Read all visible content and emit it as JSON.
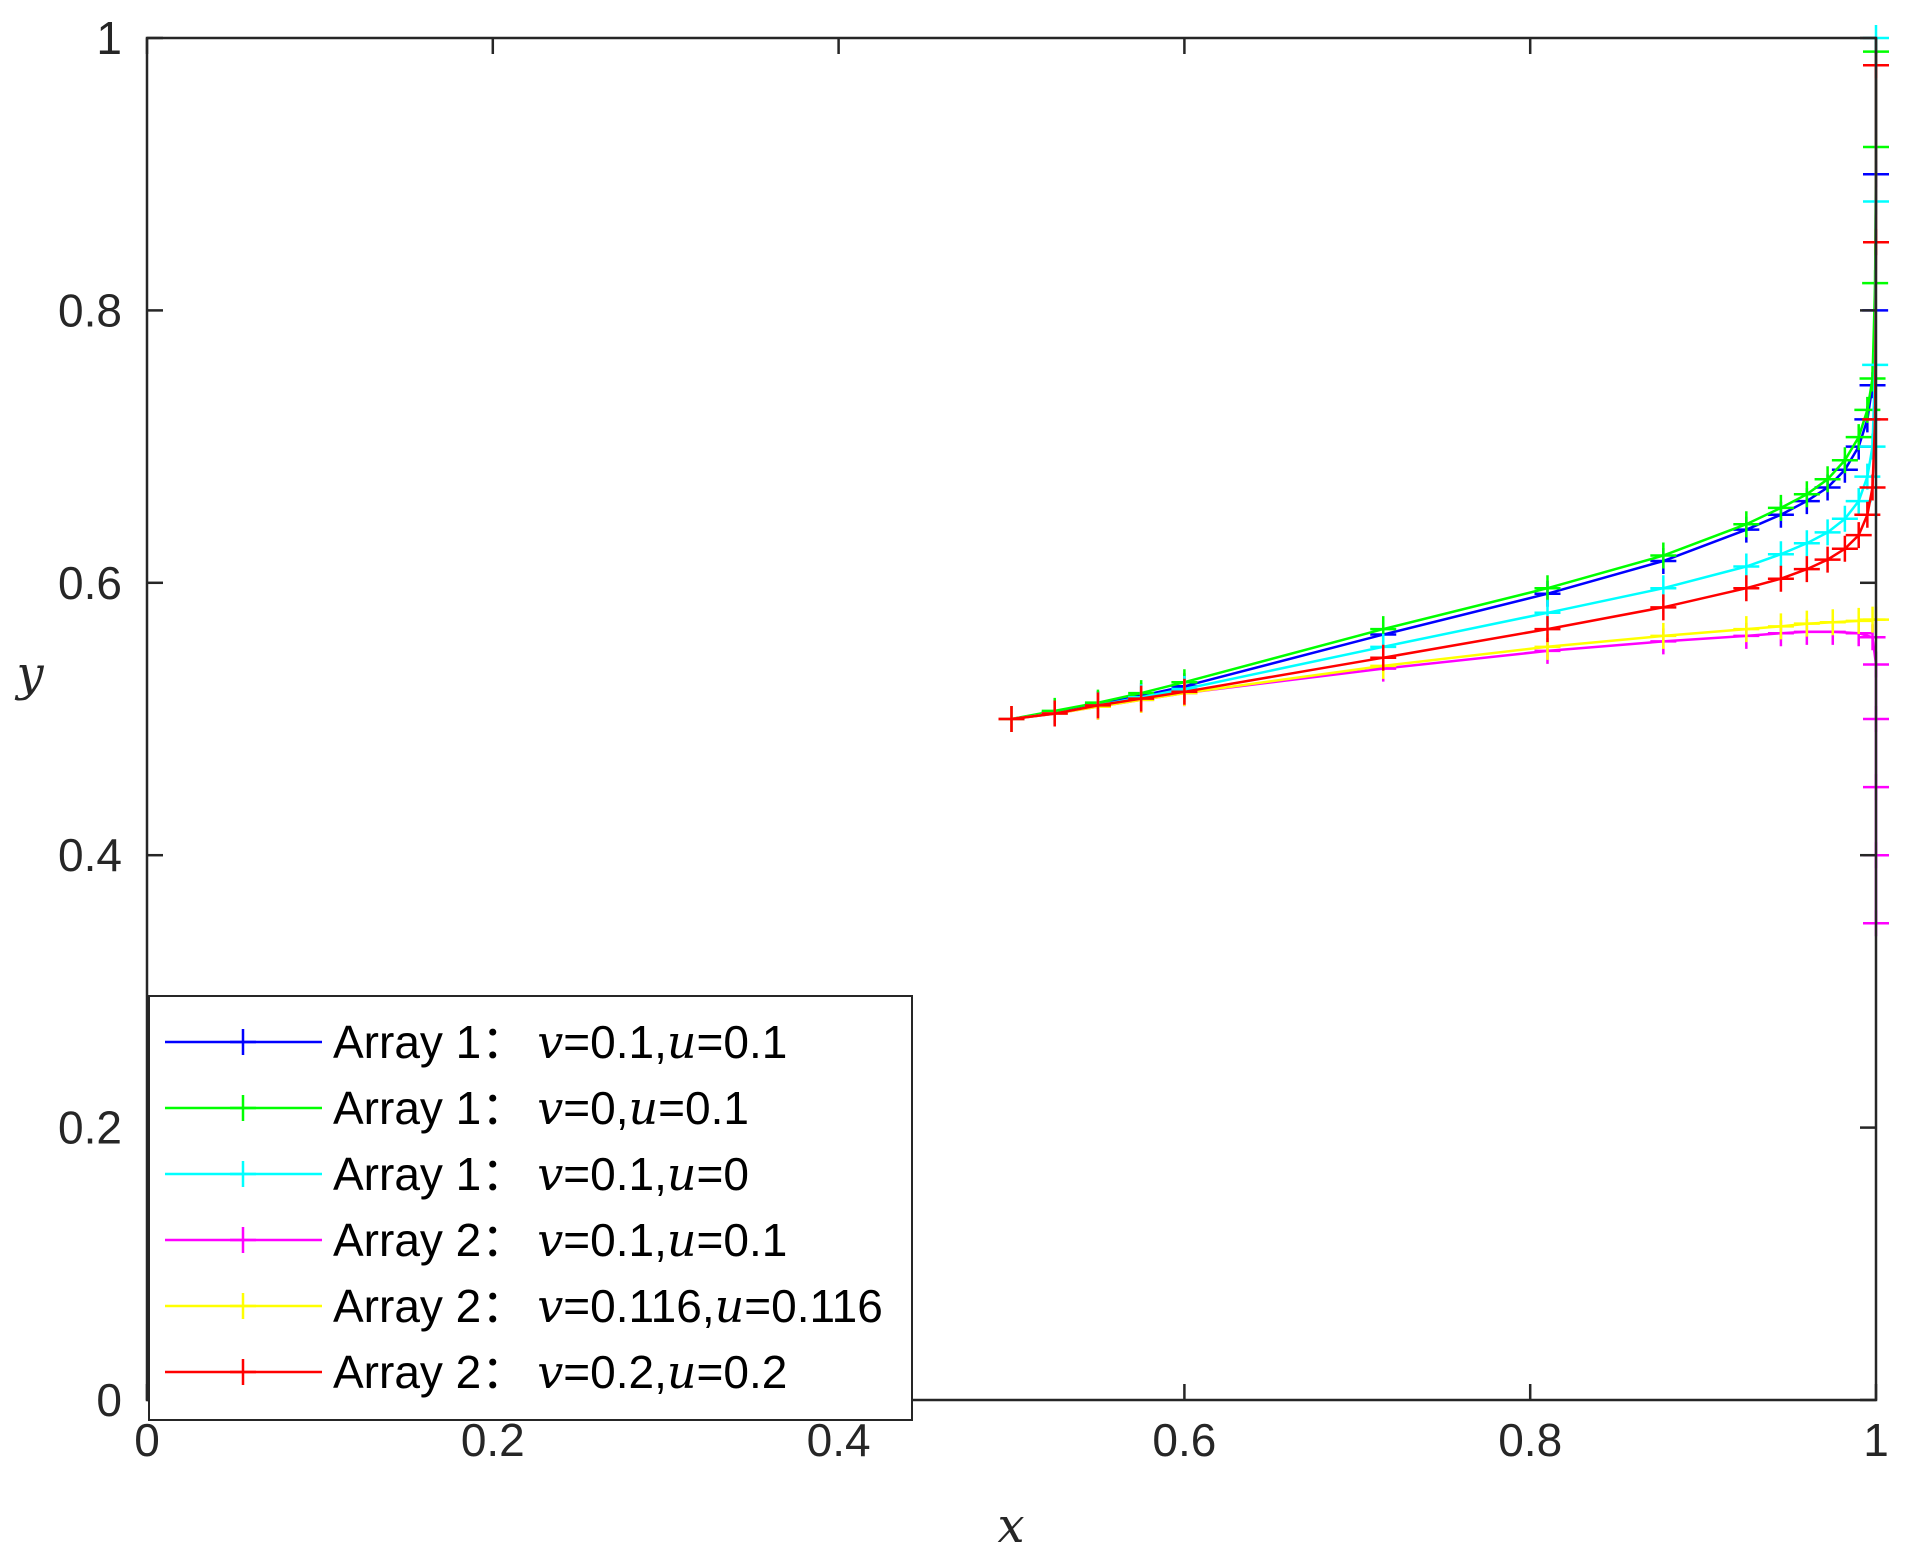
{
  "chart_data": {
    "type": "line",
    "xlabel": "x",
    "ylabel": "y",
    "xlim": [
      0,
      1
    ],
    "ylim": [
      0,
      1
    ],
    "xticks": [
      "0",
      "0.2",
      "0.4",
      "0.6",
      "0.8",
      "1"
    ],
    "yticks": [
      "0",
      "0.2",
      "0.4",
      "0.6",
      "0.8",
      "1"
    ],
    "grid": false,
    "legend_position": "bottom-left",
    "series": [
      {
        "name": "Array 1：",
        "params": "v=0.1,u=0.1",
        "color": "#0000ff",
        "marker": "plus",
        "points": [
          [
            0.5,
            0.5
          ],
          [
            0.525,
            0.505
          ],
          [
            0.55,
            0.511
          ],
          [
            0.575,
            0.517
          ],
          [
            0.6,
            0.524
          ],
          [
            0.715,
            0.562
          ],
          [
            0.81,
            0.592
          ],
          [
            0.877,
            0.616
          ],
          [
            0.925,
            0.639
          ],
          [
            0.945,
            0.65
          ],
          [
            0.96,
            0.66
          ],
          [
            0.972,
            0.67
          ],
          [
            0.982,
            0.683
          ],
          [
            0.99,
            0.7
          ],
          [
            0.995,
            0.72
          ],
          [
            0.998,
            0.745
          ],
          [
            0.9995,
            0.8
          ],
          [
            1.0,
            0.9
          ],
          [
            1.0,
            0.98
          ]
        ]
      },
      {
        "name": "Array 1：",
        "params": "v=0,u=0.1",
        "color": "#00ff00",
        "marker": "plus",
        "points": [
          [
            0.5,
            0.5
          ],
          [
            0.525,
            0.506
          ],
          [
            0.55,
            0.512
          ],
          [
            0.575,
            0.519
          ],
          [
            0.6,
            0.527
          ],
          [
            0.715,
            0.566
          ],
          [
            0.81,
            0.596
          ],
          [
            0.877,
            0.62
          ],
          [
            0.925,
            0.643
          ],
          [
            0.945,
            0.655
          ],
          [
            0.96,
            0.665
          ],
          [
            0.972,
            0.676
          ],
          [
            0.982,
            0.69
          ],
          [
            0.99,
            0.707
          ],
          [
            0.995,
            0.727
          ],
          [
            0.998,
            0.75
          ],
          [
            0.9995,
            0.82
          ],
          [
            1.0,
            0.92
          ],
          [
            1.0,
            0.99
          ]
        ]
      },
      {
        "name": "Array 1：",
        "params": "v=0.1,u=0",
        "color": "#00ffff",
        "marker": "plus",
        "points": [
          [
            0.5,
            0.5
          ],
          [
            0.525,
            0.504
          ],
          [
            0.55,
            0.51
          ],
          [
            0.575,
            0.516
          ],
          [
            0.6,
            0.522
          ],
          [
            0.715,
            0.553
          ],
          [
            0.81,
            0.578
          ],
          [
            0.877,
            0.596
          ],
          [
            0.925,
            0.612
          ],
          [
            0.945,
            0.621
          ],
          [
            0.96,
            0.629
          ],
          [
            0.972,
            0.637
          ],
          [
            0.982,
            0.647
          ],
          [
            0.99,
            0.66
          ],
          [
            0.995,
            0.678
          ],
          [
            0.998,
            0.7
          ],
          [
            0.9995,
            0.76
          ],
          [
            1.0,
            0.88
          ],
          [
            1.0,
            1.0
          ]
        ]
      },
      {
        "name": "Array 2：",
        "params": "v=0.1,u=0.1",
        "color": "#ff00ff",
        "marker": "plus",
        "points": [
          [
            0.5,
            0.5
          ],
          [
            0.525,
            0.504
          ],
          [
            0.55,
            0.509
          ],
          [
            0.575,
            0.514
          ],
          [
            0.6,
            0.519
          ],
          [
            0.715,
            0.537
          ],
          [
            0.81,
            0.55
          ],
          [
            0.877,
            0.557
          ],
          [
            0.925,
            0.561
          ],
          [
            0.945,
            0.563
          ],
          [
            0.96,
            0.564
          ],
          [
            0.975,
            0.564
          ],
          [
            0.99,
            0.563
          ],
          [
            0.998,
            0.56
          ],
          [
            1.0,
            0.54
          ],
          [
            1.0,
            0.5
          ],
          [
            1.0,
            0.45
          ],
          [
            1.0,
            0.4
          ],
          [
            1.0,
            0.35
          ]
        ]
      },
      {
        "name": "Array 2：",
        "params": "v=0.116,u=0.116",
        "color": "#ffff00",
        "marker": "plus",
        "points": [
          [
            0.5,
            0.5
          ],
          [
            0.525,
            0.504
          ],
          [
            0.55,
            0.509
          ],
          [
            0.575,
            0.514
          ],
          [
            0.6,
            0.519
          ],
          [
            0.715,
            0.539
          ],
          [
            0.81,
            0.553
          ],
          [
            0.877,
            0.561
          ],
          [
            0.925,
            0.566
          ],
          [
            0.945,
            0.568
          ],
          [
            0.96,
            0.57
          ],
          [
            0.975,
            0.571
          ],
          [
            0.99,
            0.572
          ],
          [
            0.998,
            0.573
          ],
          [
            1.0,
            0.573
          ]
        ]
      },
      {
        "name": "Array 2：",
        "params": "v=0.2,u=0.2",
        "color": "#ff0000",
        "marker": "plus",
        "points": [
          [
            0.5,
            0.5
          ],
          [
            0.525,
            0.504
          ],
          [
            0.55,
            0.51
          ],
          [
            0.575,
            0.515
          ],
          [
            0.6,
            0.52
          ],
          [
            0.715,
            0.545
          ],
          [
            0.81,
            0.566
          ],
          [
            0.877,
            0.582
          ],
          [
            0.925,
            0.596
          ],
          [
            0.945,
            0.603
          ],
          [
            0.96,
            0.61
          ],
          [
            0.972,
            0.617
          ],
          [
            0.982,
            0.625
          ],
          [
            0.99,
            0.635
          ],
          [
            0.995,
            0.65
          ],
          [
            0.998,
            0.67
          ],
          [
            0.9995,
            0.72
          ],
          [
            1.0,
            0.85
          ],
          [
            1.0,
            0.98
          ]
        ]
      }
    ]
  }
}
